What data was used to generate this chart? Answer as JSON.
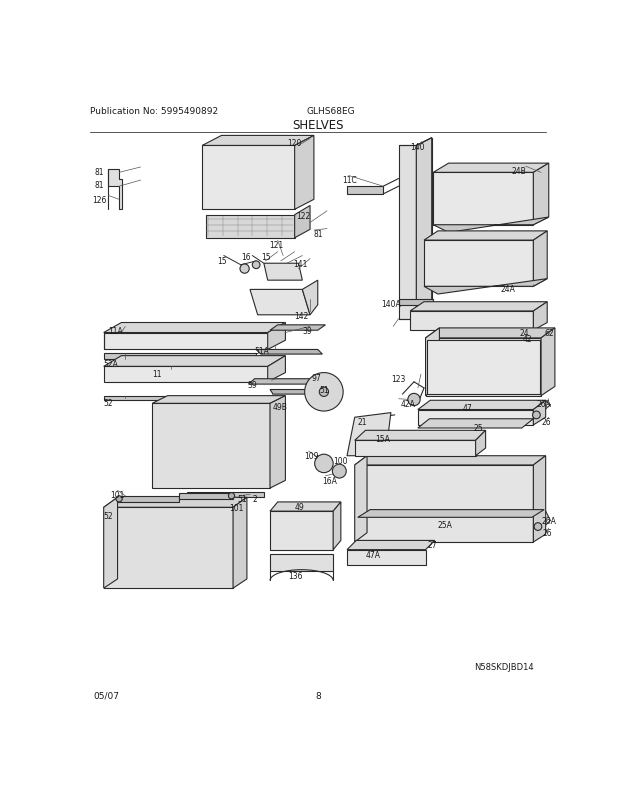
{
  "title": "SHELVES",
  "pub_no": "Publication No: 5995490892",
  "model": "GLHS68EG",
  "date": "05/07",
  "page": "8",
  "diagram_id": "N58SKDJBD14",
  "bg_color": "#ffffff",
  "line_color": "#2a2a2a",
  "text_color": "#1a1a1a",
  "title_fontsize": 8.5,
  "label_fontsize": 6.0,
  "header_fontsize": 6.5
}
